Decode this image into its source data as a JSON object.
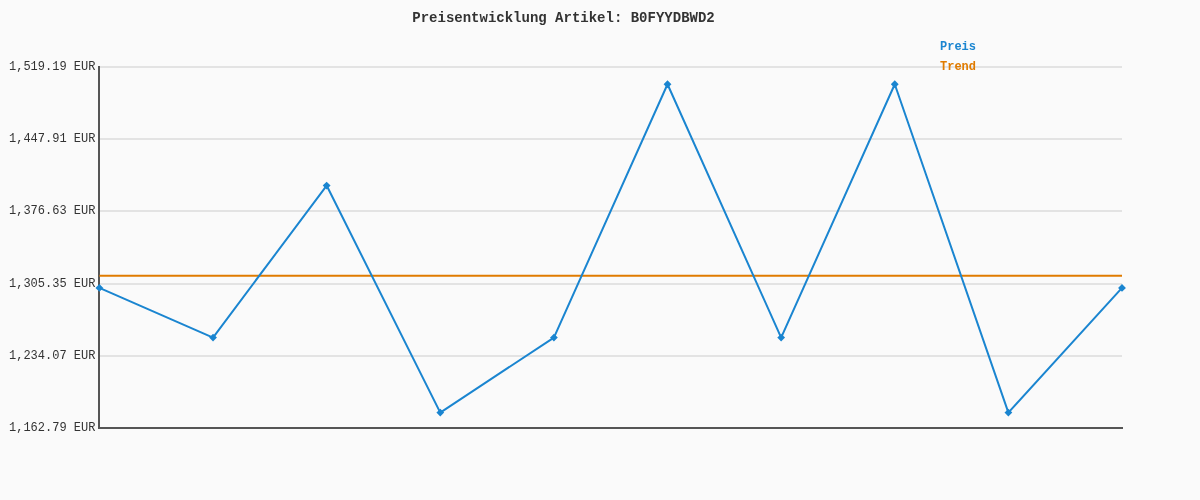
{
  "chart_data": {
    "type": "line",
    "title": "Preisentwicklung Artikel: B0FYYDBWD2",
    "categories": [
      null,
      null,
      null,
      null,
      null,
      null,
      null,
      null,
      null,
      null
    ],
    "series": [
      {
        "name": "Preis",
        "color": "#1a85d0",
        "values": [
          1301,
          1252,
          1402,
          1178,
          1252,
          1502,
          1252,
          1502,
          1178,
          1301
        ],
        "marker": "diamond"
      },
      {
        "name": "Trend",
        "color": "#e07b00",
        "values": [
          1313,
          1313,
          1313,
          1313,
          1313,
          1313,
          1313,
          1313,
          1313,
          1313
        ],
        "marker": "none"
      }
    ],
    "ylim": [
      1162.79,
      1519.19
    ],
    "yticks": [
      {
        "value": 1162.79,
        "label": "1,162.79 EUR"
      },
      {
        "value": 1234.07,
        "label": "1,234.07 EUR"
      },
      {
        "value": 1305.35,
        "label": "1,305.35 EUR"
      },
      {
        "value": 1376.63,
        "label": "1,376.63 EUR"
      },
      {
        "value": 1447.91,
        "label": "1,447.91 EUR"
      },
      {
        "value": 1519.19,
        "label": "1,519.19 EUR"
      }
    ],
    "grid": "y",
    "legend": "top right",
    "tick_labels": "y",
    "line_style": "solid"
  }
}
